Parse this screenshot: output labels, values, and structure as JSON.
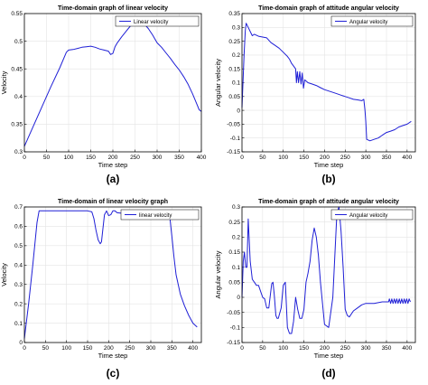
{
  "colors": {
    "line": "#1f1fd6",
    "axis": "#000000",
    "grid": "#e4e4e4"
  },
  "chart_data": [
    {
      "id": "a",
      "type": "line",
      "title": "Time-domain graph of linear velocity",
      "xlabel": "Time step",
      "ylabel": "Velocity",
      "panel_label": "(a)",
      "grid": true,
      "legend": {
        "position": "top-right",
        "entries": [
          "Linear velocity"
        ]
      },
      "xlim": [
        0,
        400
      ],
      "ylim": [
        0.3,
        0.55
      ],
      "xticks": [
        "0",
        "50",
        "100",
        "150",
        "200",
        "250",
        "300",
        "350",
        "400"
      ],
      "yticks": [
        "0.3",
        "0.35",
        "0.4",
        "0.45",
        "0.5",
        "0.55"
      ],
      "series": [
        {
          "name": "Linear velocity",
          "x": [
            0,
            20,
            40,
            60,
            80,
            95,
            100,
            110,
            120,
            130,
            140,
            150,
            160,
            170,
            180,
            190,
            195,
            200,
            205,
            210,
            220,
            230,
            240,
            250,
            255,
            260,
            265,
            270,
            280,
            290,
            300,
            310,
            320,
            330,
            340,
            350,
            360,
            370,
            380,
            390,
            395,
            400
          ],
          "y": [
            0.31,
            0.346,
            0.382,
            0.418,
            0.452,
            0.48,
            0.484,
            0.485,
            0.487,
            0.489,
            0.49,
            0.491,
            0.489,
            0.486,
            0.484,
            0.482,
            0.476,
            0.478,
            0.49,
            0.497,
            0.508,
            0.518,
            0.528,
            0.538,
            0.536,
            0.54,
            0.534,
            0.532,
            0.523,
            0.511,
            0.497,
            0.489,
            0.479,
            0.469,
            0.458,
            0.448,
            0.436,
            0.422,
            0.405,
            0.386,
            0.376,
            0.373
          ]
        }
      ]
    },
    {
      "id": "b",
      "type": "line",
      "title": "Time-domain graph of attitude angular velocity",
      "xlabel": "Time step",
      "ylabel": "Angular velocity",
      "panel_label": "(b)",
      "grid": true,
      "legend": {
        "position": "top-right",
        "entries": [
          "Angular velocity"
        ]
      },
      "xlim": [
        0,
        420
      ],
      "ylim": [
        -0.15,
        0.35
      ],
      "xticks": [
        "0",
        "50",
        "100",
        "150",
        "200",
        "250",
        "300",
        "350",
        "400"
      ],
      "yticks": [
        "-0.15",
        "-0.1",
        "-0.05",
        "0",
        "0.05",
        "0.1",
        "0.15",
        "0.2",
        "0.25",
        "0.3",
        "0.35"
      ],
      "series": [
        {
          "name": "Angular velocity",
          "x": [
            0,
            5,
            8,
            10,
            15,
            20,
            25,
            30,
            40,
            60,
            70,
            80,
            90,
            100,
            110,
            115,
            120,
            125,
            130,
            132,
            134,
            137,
            140,
            143,
            146,
            149,
            152,
            160,
            170,
            180,
            190,
            200,
            210,
            220,
            230,
            240,
            250,
            260,
            270,
            280,
            290,
            295,
            298,
            300,
            302,
            310,
            320,
            330,
            340,
            350,
            360,
            370,
            380,
            390,
            400,
            410
          ],
          "y": [
            0.01,
            0.2,
            0.29,
            0.315,
            0.3,
            0.285,
            0.27,
            0.275,
            0.268,
            0.262,
            0.245,
            0.235,
            0.225,
            0.21,
            0.195,
            0.185,
            0.17,
            0.16,
            0.15,
            0.1,
            0.14,
            0.1,
            0.14,
            0.095,
            0.135,
            0.08,
            0.11,
            0.1,
            0.095,
            0.09,
            0.082,
            0.075,
            0.07,
            0.065,
            0.06,
            0.055,
            0.05,
            0.045,
            0.04,
            0.038,
            0.035,
            0.04,
            0.0,
            -0.04,
            -0.105,
            -0.11,
            -0.105,
            -0.1,
            -0.09,
            -0.08,
            -0.075,
            -0.07,
            -0.06,
            -0.055,
            -0.05,
            -0.04
          ]
        }
      ]
    },
    {
      "id": "c",
      "type": "line",
      "title": "Time-domain of linear velocity graph",
      "xlabel": "Time step",
      "ylabel": "Velocity",
      "panel_label": "(c)",
      "grid": true,
      "legend": {
        "position": "top-right",
        "entries": [
          "linear velocity"
        ]
      },
      "xlim": [
        0,
        420
      ],
      "ylim": [
        0,
        0.7
      ],
      "xticks": [
        "0",
        "50",
        "100",
        "150",
        "200",
        "250",
        "300",
        "350",
        "400"
      ],
      "yticks": [
        "0",
        "0.1",
        "0.2",
        "0.3",
        "0.4",
        "0.5",
        "0.6",
        "0.7"
      ],
      "series": [
        {
          "name": "linear velocity",
          "x": [
            0,
            10,
            20,
            30,
            35,
            40,
            60,
            80,
            100,
            120,
            140,
            150,
            160,
            165,
            170,
            175,
            180,
            183,
            186,
            190,
            195,
            200,
            205,
            210,
            215,
            220,
            230,
            235,
            240,
            245,
            250,
            260,
            280,
            300,
            320,
            340,
            345,
            350,
            355,
            360,
            370,
            380,
            390,
            400,
            410
          ],
          "y": [
            0.02,
            0.2,
            0.4,
            0.62,
            0.68,
            0.68,
            0.68,
            0.68,
            0.68,
            0.68,
            0.68,
            0.68,
            0.675,
            0.64,
            0.58,
            0.53,
            0.51,
            0.52,
            0.58,
            0.66,
            0.68,
            0.655,
            0.66,
            0.68,
            0.68,
            0.67,
            0.668,
            0.675,
            0.68,
            0.68,
            0.68,
            0.68,
            0.68,
            0.68,
            0.68,
            0.68,
            0.65,
            0.55,
            0.44,
            0.35,
            0.25,
            0.19,
            0.14,
            0.1,
            0.08
          ]
        }
      ]
    },
    {
      "id": "d",
      "type": "line",
      "title": "Time-domain graph of attitude angular velocity",
      "xlabel": "Time step",
      "ylabel": "Angular velocity",
      "panel_label": "(d)",
      "grid": true,
      "legend": {
        "position": "top-right",
        "entries": [
          "Angular velocity"
        ]
      },
      "xlim": [
        0,
        420
      ],
      "ylim": [
        -0.15,
        0.3
      ],
      "xticks": [
        "0",
        "50",
        "100",
        "150",
        "200",
        "250",
        "300",
        "350",
        "400"
      ],
      "yticks": [
        "-0.15",
        "-0.1",
        "-0.05",
        "0",
        "0.05",
        "0.1",
        "0.15",
        "0.2",
        "0.25",
        "0.3"
      ],
      "series": [
        {
          "name": "Angular velocity",
          "x": [
            0,
            3,
            6,
            9,
            12,
            15,
            20,
            25,
            30,
            35,
            40,
            50,
            55,
            60,
            65,
            68,
            72,
            75,
            78,
            82,
            85,
            88,
            95,
            100,
            105,
            110,
            115,
            120,
            125,
            130,
            135,
            140,
            145,
            150,
            155,
            160,
            165,
            170,
            175,
            180,
            185,
            190,
            200,
            210,
            220,
            230,
            235,
            240,
            245,
            250,
            255,
            260,
            270,
            280,
            290,
            300,
            320,
            340,
            355,
            357,
            360,
            363,
            366,
            369,
            372,
            375,
            378,
            381,
            384,
            387,
            390,
            393,
            396,
            399,
            402,
            405,
            408
          ],
          "y": [
            0.0,
            0.12,
            0.15,
            0.1,
            0.1,
            0.26,
            0.12,
            0.06,
            0.05,
            0.04,
            0.04,
            0.0,
            -0.005,
            -0.035,
            -0.035,
            0.0,
            0.045,
            0.05,
            0.01,
            -0.06,
            -0.07,
            -0.07,
            -0.035,
            0.04,
            0.05,
            -0.1,
            -0.12,
            -0.12,
            -0.08,
            0.0,
            -0.04,
            -0.07,
            -0.07,
            -0.04,
            0.05,
            0.08,
            0.12,
            0.19,
            0.23,
            0.2,
            0.14,
            0.05,
            -0.09,
            -0.1,
            0.0,
            0.28,
            0.3,
            0.22,
            0.1,
            -0.04,
            -0.06,
            -0.065,
            -0.045,
            -0.035,
            -0.025,
            -0.02,
            -0.02,
            -0.015,
            -0.015,
            -0.005,
            -0.02,
            -0.005,
            -0.02,
            -0.005,
            -0.02,
            -0.005,
            -0.02,
            -0.005,
            -0.02,
            -0.005,
            -0.02,
            -0.005,
            -0.02,
            -0.005,
            -0.02,
            -0.005,
            -0.015
          ]
        }
      ]
    }
  ]
}
